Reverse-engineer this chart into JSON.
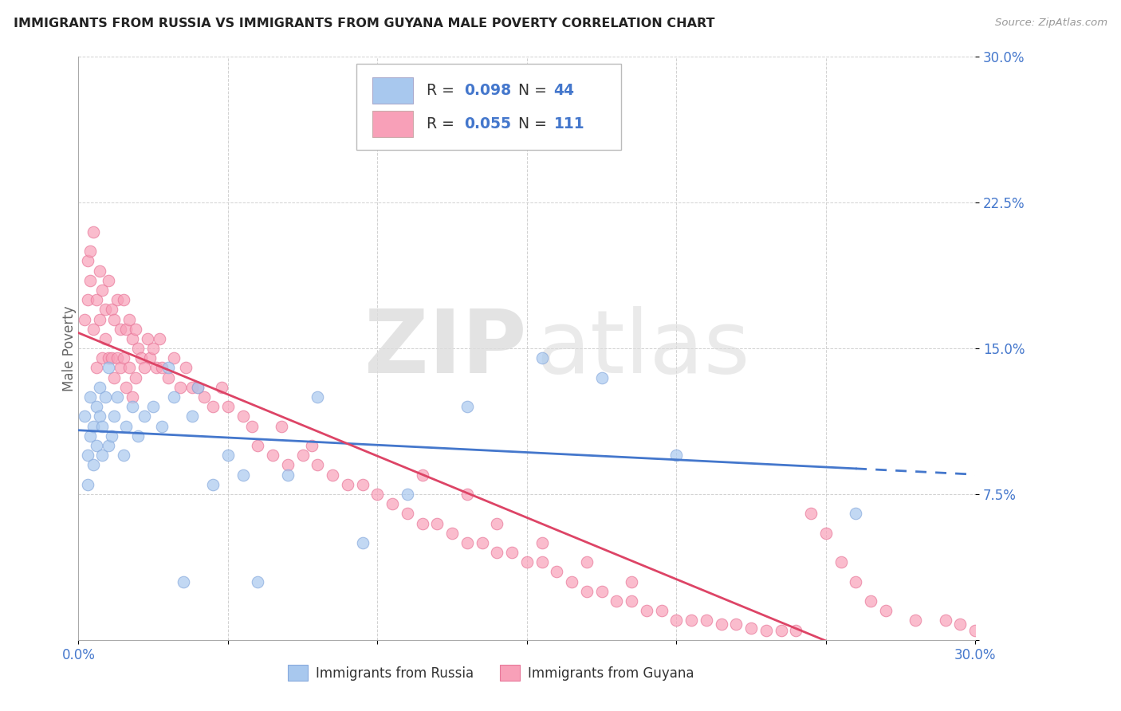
{
  "title": "IMMIGRANTS FROM RUSSIA VS IMMIGRANTS FROM GUYANA MALE POVERTY CORRELATION CHART",
  "source": "Source: ZipAtlas.com",
  "ylabel": "Male Poverty",
  "xlim": [
    0.0,
    0.3
  ],
  "ylim": [
    0.0,
    0.3
  ],
  "color_russia_fill": "#A8C8EE",
  "color_russia_edge": "#88AADD",
  "color_guyana_fill": "#F8A0B8",
  "color_guyana_edge": "#E8789A",
  "color_russia_line": "#4477CC",
  "color_guyana_line": "#DD4466",
  "color_blue_text": "#4477CC",
  "label_russia": "Immigrants from Russia",
  "label_guyana": "Immigrants from Guyana",
  "n_russia": 44,
  "n_guyana": 111,
  "russia_x": [
    0.002,
    0.003,
    0.003,
    0.004,
    0.004,
    0.005,
    0.005,
    0.006,
    0.006,
    0.007,
    0.007,
    0.008,
    0.008,
    0.009,
    0.01,
    0.01,
    0.011,
    0.012,
    0.013,
    0.015,
    0.016,
    0.018,
    0.02,
    0.022,
    0.025,
    0.028,
    0.03,
    0.032,
    0.035,
    0.038,
    0.04,
    0.045,
    0.05,
    0.055,
    0.06,
    0.07,
    0.08,
    0.095,
    0.11,
    0.13,
    0.155,
    0.175,
    0.2,
    0.26
  ],
  "russia_y": [
    0.115,
    0.095,
    0.08,
    0.105,
    0.125,
    0.11,
    0.09,
    0.12,
    0.1,
    0.115,
    0.13,
    0.095,
    0.11,
    0.125,
    0.14,
    0.1,
    0.105,
    0.115,
    0.125,
    0.095,
    0.11,
    0.12,
    0.105,
    0.115,
    0.12,
    0.11,
    0.14,
    0.125,
    0.03,
    0.115,
    0.13,
    0.08,
    0.095,
    0.085,
    0.03,
    0.085,
    0.125,
    0.05,
    0.075,
    0.12,
    0.145,
    0.135,
    0.095,
    0.065
  ],
  "guyana_x": [
    0.002,
    0.003,
    0.003,
    0.004,
    0.004,
    0.005,
    0.005,
    0.006,
    0.006,
    0.007,
    0.007,
    0.008,
    0.008,
    0.009,
    0.009,
    0.01,
    0.01,
    0.011,
    0.011,
    0.012,
    0.012,
    0.013,
    0.013,
    0.014,
    0.014,
    0.015,
    0.015,
    0.016,
    0.016,
    0.017,
    0.017,
    0.018,
    0.018,
    0.019,
    0.019,
    0.02,
    0.021,
    0.022,
    0.023,
    0.024,
    0.025,
    0.026,
    0.027,
    0.028,
    0.03,
    0.032,
    0.034,
    0.036,
    0.038,
    0.04,
    0.042,
    0.045,
    0.048,
    0.05,
    0.055,
    0.058,
    0.06,
    0.065,
    0.068,
    0.07,
    0.075,
    0.078,
    0.08,
    0.085,
    0.09,
    0.095,
    0.1,
    0.105,
    0.11,
    0.115,
    0.12,
    0.125,
    0.13,
    0.135,
    0.14,
    0.145,
    0.15,
    0.155,
    0.16,
    0.165,
    0.17,
    0.175,
    0.18,
    0.185,
    0.19,
    0.195,
    0.2,
    0.205,
    0.21,
    0.215,
    0.22,
    0.225,
    0.23,
    0.235,
    0.24,
    0.245,
    0.25,
    0.255,
    0.26,
    0.265,
    0.27,
    0.28,
    0.29,
    0.295,
    0.3,
    0.115,
    0.13,
    0.14,
    0.155,
    0.17,
    0.185
  ],
  "guyana_y": [
    0.165,
    0.195,
    0.175,
    0.2,
    0.185,
    0.21,
    0.16,
    0.175,
    0.14,
    0.19,
    0.165,
    0.18,
    0.145,
    0.17,
    0.155,
    0.185,
    0.145,
    0.17,
    0.145,
    0.165,
    0.135,
    0.175,
    0.145,
    0.16,
    0.14,
    0.175,
    0.145,
    0.16,
    0.13,
    0.165,
    0.14,
    0.155,
    0.125,
    0.16,
    0.135,
    0.15,
    0.145,
    0.14,
    0.155,
    0.145,
    0.15,
    0.14,
    0.155,
    0.14,
    0.135,
    0.145,
    0.13,
    0.14,
    0.13,
    0.13,
    0.125,
    0.12,
    0.13,
    0.12,
    0.115,
    0.11,
    0.1,
    0.095,
    0.11,
    0.09,
    0.095,
    0.1,
    0.09,
    0.085,
    0.08,
    0.08,
    0.075,
    0.07,
    0.065,
    0.06,
    0.06,
    0.055,
    0.05,
    0.05,
    0.045,
    0.045,
    0.04,
    0.04,
    0.035,
    0.03,
    0.025,
    0.025,
    0.02,
    0.02,
    0.015,
    0.015,
    0.01,
    0.01,
    0.01,
    0.008,
    0.008,
    0.006,
    0.005,
    0.005,
    0.005,
    0.065,
    0.055,
    0.04,
    0.03,
    0.02,
    0.015,
    0.01,
    0.01,
    0.008,
    0.005,
    0.085,
    0.075,
    0.06,
    0.05,
    0.04,
    0.03
  ]
}
